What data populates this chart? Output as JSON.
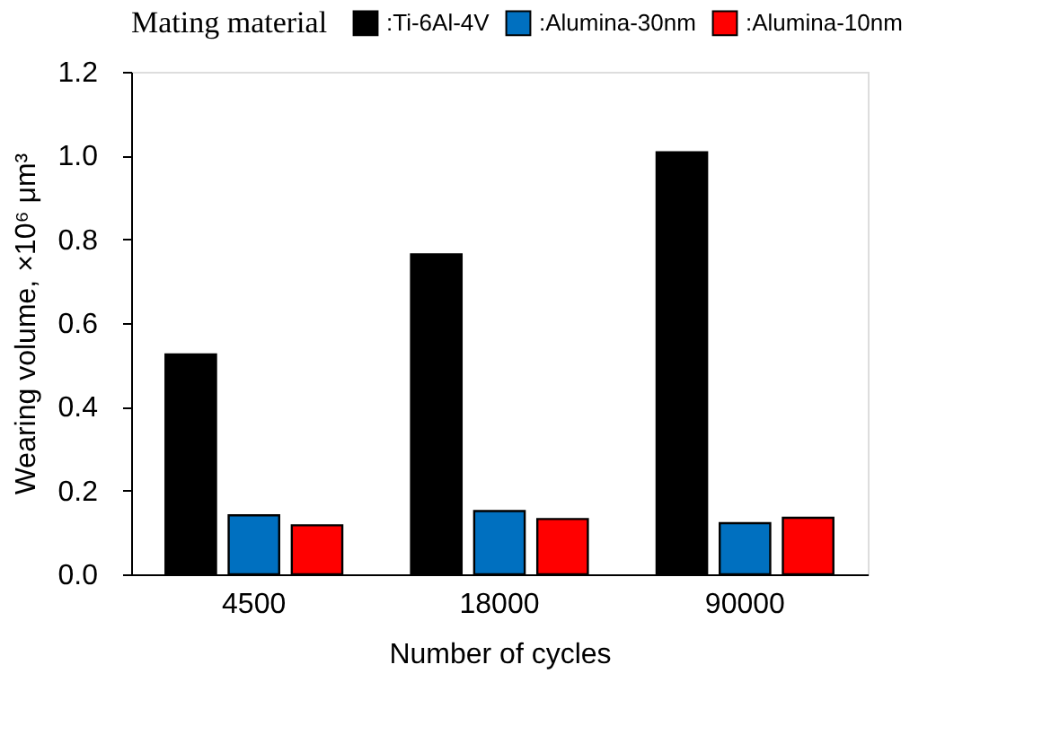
{
  "chart_data": {
    "type": "bar",
    "xlabel": "Number of cycles",
    "ylabel": "Wearing volume,  ×10⁶ μm³",
    "legend_title": "Mating   material",
    "legend": "top",
    "categories": [
      "4500",
      "18000",
      "90000"
    ],
    "series": [
      {
        "name": ":Ti-6Al-4V",
        "color": "#000000",
        "values": [
          0.525,
          0.764,
          1.008
        ]
      },
      {
        "name": ":Alumina-30nm",
        "color": "#0070c0",
        "values": [
          0.141,
          0.151,
          0.122
        ]
      },
      {
        "name": ":Alumina-10nm",
        "color": "#ff0000",
        "values": [
          0.117,
          0.132,
          0.135
        ]
      }
    ],
    "ylim": [
      0,
      1.2
    ],
    "yticks": [
      {
        "value": 0,
        "label": "0.0"
      },
      0.2,
      0.4,
      0.6,
      0.8,
      {
        "value": 1,
        "label": "1.0"
      },
      1.2
    ],
    "grid": false
  }
}
